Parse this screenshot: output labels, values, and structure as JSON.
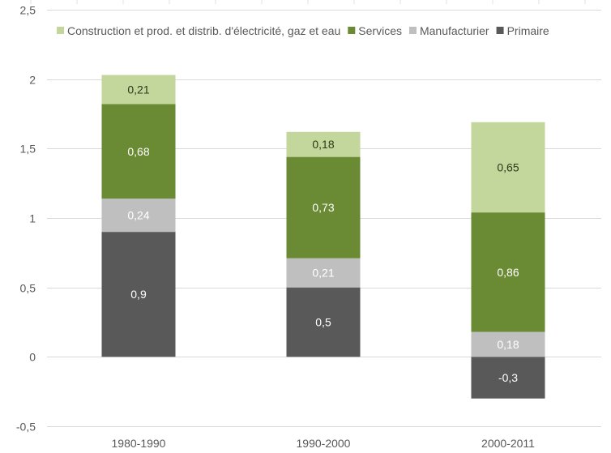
{
  "chart_data": {
    "type": "bar",
    "stacked": true,
    "title": "",
    "xlabel": "",
    "ylabel": "",
    "categories": [
      "1980-1990",
      "1990-2000",
      "2000-2011"
    ],
    "series": [
      {
        "name": "Primaire",
        "color": "#595959",
        "label_color": "#ffffff",
        "values": [
          0.9,
          0.5,
          -0.3
        ],
        "labels": [
          "0,9",
          "0,5",
          "-0,3"
        ]
      },
      {
        "name": "Manufacturier",
        "color": "#bfbfbf",
        "label_color": "#ffffff",
        "values": [
          0.24,
          0.21,
          0.18
        ],
        "labels": [
          "0,24",
          "0,21",
          "0,18"
        ]
      },
      {
        "name": "Services",
        "color": "#6a8a34",
        "label_color": "#ffffff",
        "values": [
          0.68,
          0.73,
          0.86
        ],
        "labels": [
          "0,68",
          "0,73",
          "0,86"
        ]
      },
      {
        "name": "Construction et prod. et distrib. d'électricité, gaz et eau",
        "color": "#c3d69b",
        "label_color": "#2d3a1a",
        "values": [
          0.21,
          0.18,
          0.65
        ],
        "labels": [
          "0,21",
          "0,18",
          "0,65"
        ]
      }
    ],
    "legend_order": [
      "Construction et prod. et distrib. d'électricité, gaz et eau",
      "Services",
      "Manufacturier",
      "Primaire"
    ],
    "legend_position": "top",
    "ylim": [
      -0.5,
      2.5
    ],
    "yticks": [
      -0.5,
      0,
      0.5,
      1,
      1.5,
      2,
      2.5
    ],
    "ytick_labels": [
      "-0,5",
      "0",
      "0,5",
      "1",
      "1,5",
      "2",
      "2,5"
    ],
    "grid": true,
    "gridline_color": "#d9d9d9"
  }
}
